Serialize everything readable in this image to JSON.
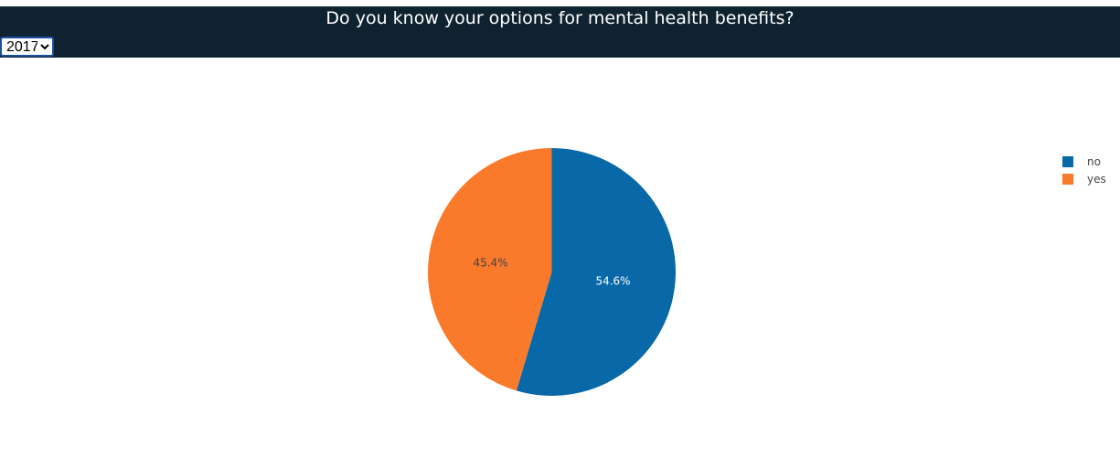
{
  "header": {
    "title": "Do you know your options for mental health benefits?",
    "year_select": {
      "selected": "2017",
      "options": [
        "2017"
      ]
    }
  },
  "chart_data": {
    "type": "pie",
    "labels": [
      "no",
      "yes"
    ],
    "values": [
      54.6,
      45.4
    ],
    "percent_labels": [
      "54.6%",
      "45.4%"
    ],
    "colors": [
      "#0868a8",
      "#fa7a2c"
    ],
    "label_colors": [
      "#ffffff",
      "#444444"
    ],
    "start": "12 o'clock, clockwise",
    "legend": {
      "position": "top-right",
      "entries": [
        "no",
        "yes"
      ]
    }
  }
}
